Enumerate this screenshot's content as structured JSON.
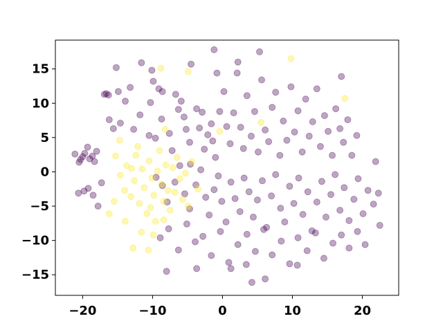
{
  "chart_data": {
    "type": "scatter",
    "title": "",
    "xlabel": "",
    "ylabel": "",
    "xlim": [
      -23.9,
      25.2
    ],
    "ylim": [
      -18.0,
      19.2
    ],
    "grid": false,
    "legend": "none",
    "x_ticks": [
      -20,
      -10,
      0,
      10,
      20
    ],
    "y_ticks": [
      -15,
      -10,
      -5,
      0,
      5,
      10,
      15
    ],
    "colors": {
      "purple": "#440154",
      "yellow": "#fde725"
    },
    "marker_alpha": 0.35,
    "series": [
      {
        "color": "#440154",
        "points": [
          [
            -21.1,
            2.6
          ],
          [
            -20.3,
            1.8
          ],
          [
            -20.0,
            2.2
          ],
          [
            -19.7,
            2.7
          ],
          [
            -19.0,
            1.9
          ],
          [
            -18.6,
            2.3
          ],
          [
            -18.3,
            1.5
          ],
          [
            -19.3,
            3.6
          ],
          [
            -18.0,
            3.0
          ],
          [
            -20.5,
            1.4
          ],
          [
            -20.6,
            -3.1
          ],
          [
            -19.8,
            -2.8
          ],
          [
            -19.2,
            -2.4
          ],
          [
            -18.5,
            -3.4
          ],
          [
            -17.8,
            -5.0
          ],
          [
            -17.3,
            -1.6
          ],
          [
            -16.9,
            11.3
          ],
          [
            -16.6,
            11.4
          ],
          [
            -16.3,
            11.2
          ],
          [
            -16.2,
            7.6
          ],
          [
            -15.6,
            6.3
          ],
          [
            -14.9,
            11.7
          ],
          [
            -14.6,
            7.1
          ],
          [
            -13.9,
            10.3
          ],
          [
            -13.2,
            12.3
          ],
          [
            -12.7,
            6.2
          ],
          [
            -11.6,
            15.9
          ],
          [
            -11.8,
            8.3
          ],
          [
            -10.5,
            5.3
          ],
          [
            -10.3,
            10.1
          ],
          [
            -9.9,
            13.2
          ],
          [
            -9.6,
            4.9
          ],
          [
            -9.1,
            12.1
          ],
          [
            -8.7,
            7.7
          ],
          [
            -8.6,
            11.7
          ],
          [
            -7.6,
            5.6
          ],
          [
            -7.2,
            3.1
          ],
          [
            -6.7,
            11.3
          ],
          [
            -6.3,
            9.1
          ],
          [
            -5.9,
            10.3
          ],
          [
            -5.5,
            8.0
          ],
          [
            -5.2,
            6.2
          ],
          [
            -4.7,
            4.3
          ],
          [
            -4.6,
            1.1
          ],
          [
            -3.7,
            9.2
          ],
          [
            -3.3,
            6.4
          ],
          [
            -2.9,
            8.7
          ],
          [
            -2.6,
            3.3
          ],
          [
            -2.1,
            5.4
          ],
          [
            -1.6,
            7.0
          ],
          [
            -1.4,
            4.5
          ],
          [
            -1.0,
            2.1
          ],
          [
            -0.4,
            8.8
          ],
          [
            0.2,
            11.7
          ],
          [
            0.6,
            6.6
          ],
          [
            1.1,
            4.1
          ],
          [
            1.6,
            8.6
          ],
          [
            2.1,
            14.4
          ],
          [
            2.6,
            6.5
          ],
          [
            3.0,
            3.4
          ],
          [
            3.5,
            11.1
          ],
          [
            4.1,
            5.2
          ],
          [
            4.6,
            8.8
          ],
          [
            5.1,
            2.9
          ],
          [
            5.6,
            13.4
          ],
          [
            6.1,
            6.1
          ],
          [
            6.6,
            4.4
          ],
          [
            7.1,
            9.4
          ],
          [
            7.6,
            11.6
          ],
          [
            8.2,
            2.4
          ],
          [
            8.7,
            7.4
          ],
          [
            9.2,
            4.6
          ],
          [
            9.8,
            12.4
          ],
          [
            10.3,
            5.8
          ],
          [
            10.8,
            8.9
          ],
          [
            11.4,
            2.9
          ],
          [
            11.9,
            10.6
          ],
          [
            12.4,
            5.2
          ],
          [
            12.9,
            7.3
          ],
          [
            13.5,
            12.1
          ],
          [
            14.0,
            3.7
          ],
          [
            14.6,
            8.2
          ],
          [
            15.1,
            5.9
          ],
          [
            15.7,
            2.4
          ],
          [
            16.2,
            9.2
          ],
          [
            16.8,
            6.3
          ],
          [
            17.3,
            4.3
          ],
          [
            17.9,
            7.6
          ],
          [
            18.5,
            2.4
          ],
          [
            19.2,
            5.3
          ],
          [
            -9.5,
            -0.8
          ],
          [
            -8.6,
            -2.0
          ],
          [
            -7.9,
            -4.4
          ],
          [
            -6.8,
            -1.5
          ],
          [
            -6.1,
            0.9
          ],
          [
            -5.4,
            -3.2
          ],
          [
            -4.7,
            -5.4
          ],
          [
            -3.8,
            -1.9
          ],
          [
            -3.1,
            0.3
          ],
          [
            -2.4,
            -3.7
          ],
          [
            -1.9,
            -6.3
          ],
          [
            -1.2,
            -2.6
          ],
          [
            -0.6,
            -0.6
          ],
          [
            -0.1,
            -4.3
          ],
          [
            0.5,
            -7.3
          ],
          [
            1.2,
            -1.5
          ],
          [
            1.8,
            -3.9
          ],
          [
            2.5,
            -5.8
          ],
          [
            3.1,
            -0.9
          ],
          [
            3.8,
            -2.9
          ],
          [
            4.4,
            -6.6
          ],
          [
            5.0,
            -4.1
          ],
          [
            5.7,
            -1.3
          ],
          [
            6.3,
            -8.1
          ],
          [
            7.0,
            -3.5
          ],
          [
            7.6,
            -0.4
          ],
          [
            8.3,
            -5.3
          ],
          [
            8.9,
            -7.3
          ],
          [
            9.6,
            -2.1
          ],
          [
            10.2,
            -4.6
          ],
          [
            10.9,
            -0.9
          ],
          [
            11.5,
            -6.2
          ],
          [
            12.2,
            -2.9
          ],
          [
            12.8,
            -8.6
          ],
          [
            13.5,
            -4.4
          ],
          [
            14.2,
            -1.4
          ],
          [
            14.8,
            -6.6
          ],
          [
            15.5,
            -3.3
          ],
          [
            16.1,
            -0.4
          ],
          [
            16.8,
            -5.6
          ],
          [
            17.4,
            -2.3
          ],
          [
            18.1,
            -7.1
          ],
          [
            18.8,
            -4.0
          ],
          [
            19.4,
            -1.0
          ],
          [
            20.1,
            -6.1
          ],
          [
            20.8,
            -2.7
          ],
          [
            21.6,
            -4.7
          ],
          [
            22.3,
            -3.1
          ],
          [
            22.5,
            -7.8
          ],
          [
            21.9,
            1.5
          ],
          [
            -8.9,
            -9.6
          ],
          [
            -7.7,
            -8.3
          ],
          [
            -6.3,
            -11.4
          ],
          [
            -5.1,
            -7.6
          ],
          [
            -3.9,
            -10.2
          ],
          [
            -2.8,
            -9.4
          ],
          [
            -1.6,
            -12.2
          ],
          [
            -0.3,
            -8.7
          ],
          [
            0.9,
            -13.2
          ],
          [
            2.2,
            -10.6
          ],
          [
            3.5,
            -9.1
          ],
          [
            4.7,
            -11.6
          ],
          [
            5.9,
            -8.4
          ],
          [
            7.1,
            -12.1
          ],
          [
            8.4,
            -10.1
          ],
          [
            9.6,
            -13.4
          ],
          [
            10.8,
            -9.6
          ],
          [
            12.1,
            -11.5
          ],
          [
            13.3,
            -8.9
          ],
          [
            14.5,
            -12.6
          ],
          [
            15.8,
            -10.4
          ],
          [
            17.0,
            -9.2
          ],
          [
            18.1,
            -11.1
          ],
          [
            19.3,
            -8.7
          ],
          [
            20.4,
            -10.6
          ],
          [
            -8.0,
            -14.5
          ],
          [
            -3.7,
            -14.1
          ],
          [
            1.2,
            -14.1
          ],
          [
            3.4,
            -13.5
          ],
          [
            10.7,
            -13.6
          ],
          [
            4.2,
            -16.1
          ],
          [
            6.1,
            -15.6
          ],
          [
            -4.5,
            15.7
          ],
          [
            -1.2,
            17.8
          ],
          [
            2.2,
            16.0
          ],
          [
            5.3,
            17.5
          ],
          [
            -15.2,
            15.2
          ],
          [
            -10.1,
            14.8
          ],
          [
            17.0,
            13.9
          ],
          [
            -0.8,
            14.4
          ]
        ]
      },
      {
        "color": "#fde725",
        "points": [
          [
            -15.3,
            2.3
          ],
          [
            -14.6,
            -0.5
          ],
          [
            -14.0,
            -2.7
          ],
          [
            -13.7,
            0.9
          ],
          [
            -13.1,
            -3.6
          ],
          [
            -12.6,
            -1.3
          ],
          [
            -12.4,
            2.4
          ],
          [
            -11.9,
            -4.6
          ],
          [
            -11.5,
            0.4
          ],
          [
            -11.2,
            -2.3
          ],
          [
            -10.8,
            -6.1
          ],
          [
            -10.5,
            1.6
          ],
          [
            -10.1,
            -0.9
          ],
          [
            -9.8,
            -3.4
          ],
          [
            -9.6,
            -7.2
          ],
          [
            -9.3,
            0.1
          ],
          [
            -9.0,
            3.1
          ],
          [
            -8.7,
            -1.8
          ],
          [
            -8.4,
            -4.3
          ],
          [
            -8.1,
            1.0
          ],
          [
            -7.8,
            -2.7
          ],
          [
            -7.5,
            -5.6
          ],
          [
            -7.1,
            0.6
          ],
          [
            -6.8,
            -3.0
          ],
          [
            -6.5,
            2.1
          ],
          [
            -6.1,
            -1.0
          ],
          [
            -5.7,
            -4.0
          ],
          [
            -5.3,
            -0.2
          ],
          [
            -4.9,
            -5.0
          ],
          [
            -4.4,
            1.5
          ],
          [
            -13.9,
            -7.2
          ],
          [
            -12.8,
            -11.1
          ],
          [
            -11.6,
            -8.8
          ],
          [
            -10.3,
            -5.2
          ],
          [
            -9.9,
            -9.2
          ],
          [
            -8.4,
            -7.0
          ],
          [
            -15.5,
            -4.3
          ],
          [
            -16.2,
            -6.1
          ],
          [
            -14.7,
            4.6
          ],
          [
            -13.0,
            0.5
          ],
          [
            -8.8,
            15.1
          ],
          [
            -4.9,
            14.6
          ],
          [
            9.8,
            16.5
          ],
          [
            17.5,
            10.7
          ],
          [
            5.5,
            7.2
          ],
          [
            -8.2,
            6.2
          ],
          [
            -0.4,
            5.9
          ],
          [
            -3.5,
            -2.5
          ],
          [
            -12.1,
            3.7
          ],
          [
            -10.6,
            -11.4
          ]
        ]
      }
    ]
  }
}
